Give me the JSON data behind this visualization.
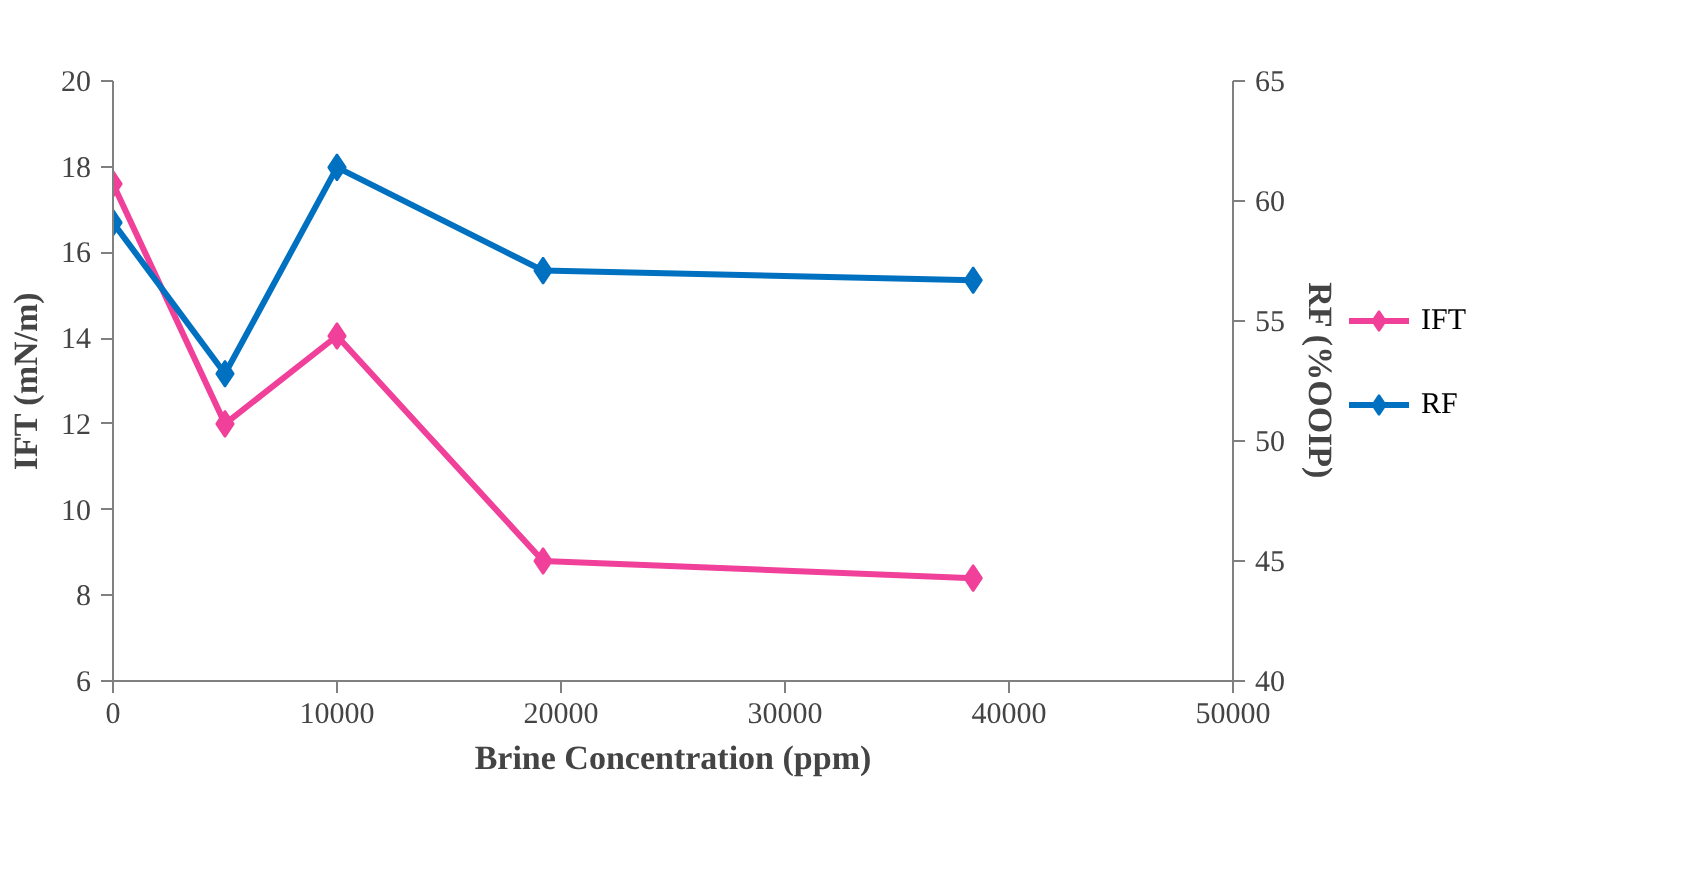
{
  "chart_data": {
    "type": "line",
    "xlabel": "Brine Concentration (ppm)",
    "ylabel": "IFT (mN/m)",
    "y2label": "RF (%OOIP)",
    "x": [
      0,
      5000,
      10000,
      19200,
      38400
    ],
    "series": [
      {
        "name": "IFT",
        "color": "#f0409a",
        "values": [
          17.6,
          12.0,
          14.05,
          8.8,
          8.4
        ]
      },
      {
        "name": "RF",
        "color": "#0070c0",
        "axis": "y2",
        "values": [
          59.1,
          52.8,
          61.4,
          57.1,
          56.7
        ]
      }
    ],
    "xlim": [
      0,
      50000
    ],
    "xticks": [
      0,
      10000,
      20000,
      30000,
      40000,
      50000
    ],
    "ylim": [
      6,
      20
    ],
    "yticks": [
      6,
      8,
      10,
      12,
      14,
      16,
      18,
      20
    ],
    "y2lim": [
      40,
      65
    ],
    "y2ticks": [
      40,
      45,
      50,
      55,
      60,
      65
    ],
    "marker": "diamond",
    "line_style": "solid",
    "grid": false,
    "legend": "right"
  }
}
